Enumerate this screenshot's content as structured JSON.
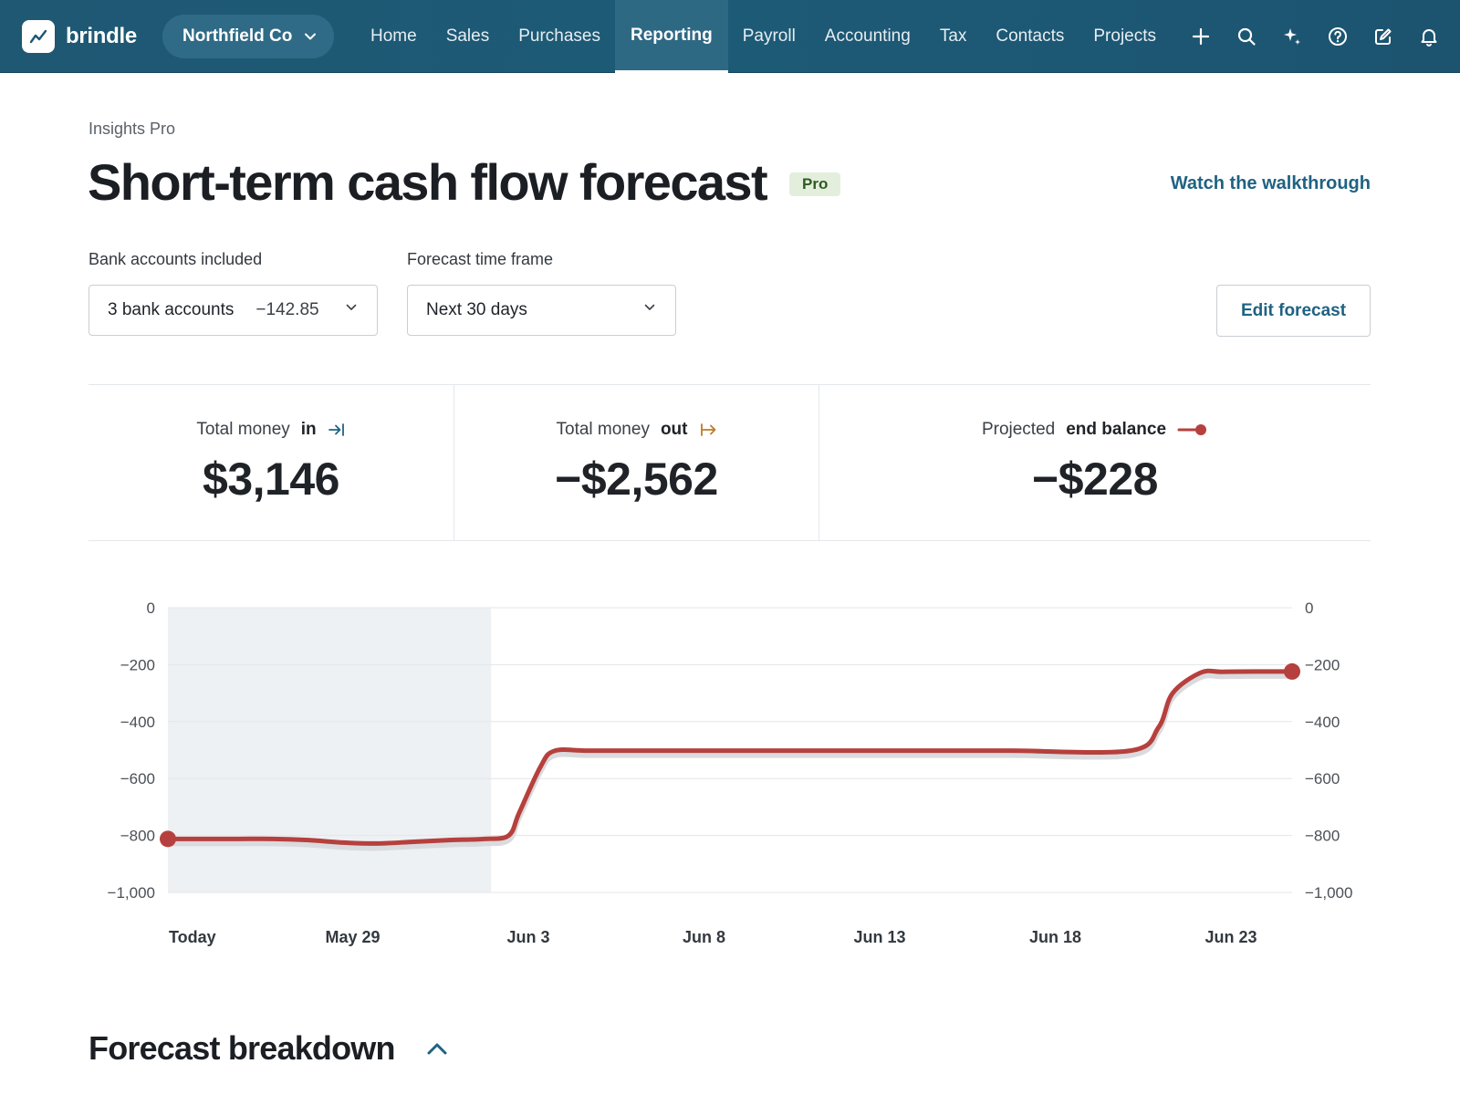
{
  "nav": {
    "brand": "brindle",
    "company": "Northfield Co",
    "links": [
      {
        "label": "Home"
      },
      {
        "label": "Sales"
      },
      {
        "label": "Purchases"
      },
      {
        "label": "Reporting",
        "active": true
      },
      {
        "label": "Payroll"
      },
      {
        "label": "Accounting"
      },
      {
        "label": "Tax"
      },
      {
        "label": "Contacts"
      },
      {
        "label": "Projects"
      }
    ],
    "icons": [
      "plus-icon",
      "search-icon",
      "sparkle-icon",
      "help-icon",
      "compose-icon",
      "bell-icon"
    ]
  },
  "header": {
    "eyebrow": "Insights Pro",
    "title": "Short-term cash flow forecast",
    "badge": "Pro",
    "walkthrough": "Watch the walkthrough"
  },
  "filters": {
    "accounts_label": "Bank accounts included",
    "accounts_value": "3 bank accounts",
    "accounts_balance": "−142.85",
    "timeframe_label": "Forecast time frame",
    "timeframe_value": "Next 30 days",
    "edit_button": "Edit forecast"
  },
  "stats": [
    {
      "prefix": "Total money",
      "emphasis": "in",
      "value": "$3,146",
      "icon": "arrow-in-icon"
    },
    {
      "prefix": "Total money",
      "emphasis": "out",
      "value": "−$2,562",
      "icon": "arrow-out-icon"
    },
    {
      "prefix": "Projected",
      "emphasis": "end balance",
      "value": "−$228",
      "icon": "end-balance-icon"
    }
  ],
  "colors": {
    "nav": "#1e5873",
    "accent": "#1f6283",
    "line": "#b6403d",
    "shade": "#eef1f4",
    "in_icon": "#1f6283",
    "out_icon": "#c07a28"
  },
  "chart_data": {
    "type": "line",
    "title": "",
    "xlabel": "",
    "ylabel": "",
    "ylim": [
      -1000,
      0
    ],
    "yticks": [
      0,
      -200,
      -400,
      -600,
      -800,
      -1000
    ],
    "ytick_labels": [
      "0",
      "−200",
      "−400",
      "−600",
      "−800",
      "−1,000"
    ],
    "xticks": [
      0,
      5,
      10,
      15,
      20,
      25,
      30
    ],
    "xtick_labels": [
      "Today",
      "May 29",
      "Jun 3",
      "Jun 8",
      "Jun 13",
      "Jun 18",
      "Jun 23"
    ],
    "xlim": [
      0,
      32
    ],
    "shaded_range": [
      0,
      9.2
    ],
    "grid": true,
    "dual_axis": true,
    "series": [
      {
        "x": [
          0,
          1,
          2,
          3,
          4,
          5,
          6,
          7,
          8,
          9,
          9.7,
          10,
          10.6,
          11,
          12,
          14,
          16,
          18,
          20,
          22,
          24,
          27.4,
          28.2,
          28.6,
          29.4,
          30,
          31,
          32
        ],
        "y": [
          -812,
          -812,
          -812,
          -812,
          -816,
          -825,
          -828,
          -822,
          -816,
          -812,
          -800,
          -720,
          -560,
          -503,
          -502,
          -502,
          -502,
          -502,
          -502,
          -502,
          -502,
          -502,
          -420,
          -300,
          -228,
          -225,
          -224,
          -224
        ]
      }
    ]
  },
  "breakdown": {
    "title": "Forecast breakdown"
  }
}
